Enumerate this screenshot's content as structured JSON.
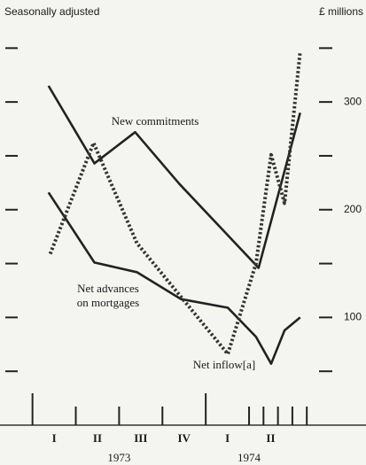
{
  "chart_data": {
    "type": "line",
    "subtitle": "Seasonally adjusted",
    "y_label": "£ millions",
    "annotations": [
      "New commitments",
      "Net advances",
      "on mortgages",
      "Net inflow[a]"
    ],
    "xlim": [
      -0.75,
      7.7
    ],
    "ylim": [
      0,
      370
    ],
    "yticks": [
      100,
      200,
      300
    ],
    "yminorticks": [
      50,
      150,
      250,
      350
    ],
    "xticks": [
      0,
      4
    ],
    "xminorticks": [
      1,
      2,
      3,
      5,
      5.333,
      5.667,
      6,
      6.333
    ],
    "xlabels": [
      {
        "value": 0.5,
        "label": "I"
      },
      {
        "value": 1.5,
        "label": "II"
      },
      {
        "value": 2.5,
        "label": "III"
      },
      {
        "value": 3.5,
        "label": "IV"
      },
      {
        "value": 4.5,
        "label": "I"
      },
      {
        "value": 5.5,
        "label": "II"
      }
    ],
    "xgroups": [
      {
        "value": 2,
        "label": "1973"
      },
      {
        "value": 5,
        "label": "1974"
      }
    ],
    "series": [
      {
        "name": "New commitments",
        "color": "#222222",
        "style": "solid",
        "x": [
          0.37,
          1.43,
          2.37,
          3.39,
          5.22,
          6.18
        ],
        "values": [
          315,
          243,
          272,
          224,
          146,
          290
        ]
      },
      {
        "name": "Net advances on mortgages",
        "color": "#222222",
        "style": "solid",
        "x": [
          0.37,
          1.43,
          2.41,
          3.43,
          4.51,
          5.16,
          5.51,
          5.82,
          6.18
        ],
        "values": [
          216,
          151,
          142,
          117,
          109,
          82,
          57,
          88,
          100
        ]
      },
      {
        "name": "Net inflow[a]",
        "color": "#333333",
        "style": "dotted",
        "x": [
          0.41,
          1.41,
          2.41,
          3.43,
          4.51,
          5.16,
          5.51,
          5.82,
          6.18
        ],
        "values": [
          159,
          262,
          169,
          119,
          66,
          150,
          251,
          206,
          347
        ]
      }
    ]
  }
}
